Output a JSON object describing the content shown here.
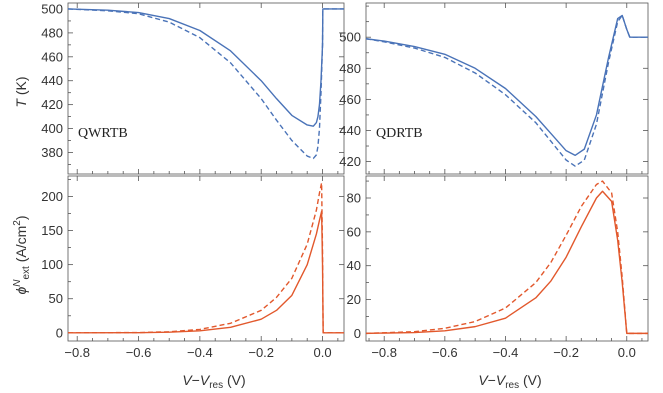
{
  "chart_data": [
    {
      "id": "qwrtb-T",
      "type": "line",
      "annotation": "QWRTB",
      "ylabel": "T (K)",
      "xlabel": "",
      "xlim": [
        -0.83,
        0.07
      ],
      "ylim": [
        362,
        505
      ],
      "xticks": [
        -0.8,
        -0.6,
        -0.4,
        -0.2,
        0.0
      ],
      "xtick_labels": [],
      "yticks": [
        380,
        400,
        420,
        440,
        460,
        480,
        500
      ],
      "ytick_labels": [
        "380",
        "400",
        "420",
        "440",
        "460",
        "480",
        "500"
      ],
      "grid": false,
      "series": [
        {
          "style": "solid",
          "color": "#4a73b8",
          "x": [
            -0.83,
            -0.7,
            -0.6,
            -0.5,
            -0.4,
            -0.3,
            -0.2,
            -0.15,
            -0.1,
            -0.05,
            -0.03,
            -0.02,
            -0.015,
            -0.01,
            -0.005,
            0.0,
            0.001,
            0.07
          ],
          "y": [
            500,
            499,
            497,
            492,
            482,
            465,
            440,
            425,
            411,
            403,
            402,
            405,
            410,
            420,
            440,
            470,
            500,
            500
          ]
        },
        {
          "style": "dashed",
          "color": "#4a73b8",
          "x": [
            -0.83,
            -0.7,
            -0.6,
            -0.5,
            -0.4,
            -0.3,
            -0.2,
            -0.15,
            -0.1,
            -0.05,
            -0.03,
            -0.02,
            -0.015,
            -0.01,
            -0.005,
            0.0,
            0.001,
            0.07
          ],
          "y": [
            500,
            498.5,
            496,
            489,
            476,
            455,
            425,
            407,
            390,
            377,
            375,
            378,
            385,
            400,
            430,
            470,
            500,
            500
          ]
        }
      ]
    },
    {
      "id": "qdrtb-T",
      "type": "line",
      "annotation": "QDRTB",
      "ylabel": "",
      "xlabel": "",
      "xlim": [
        -0.86,
        0.07
      ],
      "ylim": [
        412,
        522
      ],
      "xticks": [
        -0.8,
        -0.6,
        -0.4,
        -0.2,
        0.0
      ],
      "xtick_labels": [],
      "yticks": [
        420,
        440,
        460,
        480,
        500
      ],
      "ytick_labels": [
        "420",
        "440",
        "460",
        "480",
        "500"
      ],
      "grid": false,
      "series": [
        {
          "style": "solid",
          "color": "#4a73b8",
          "x": [
            -0.86,
            -0.8,
            -0.7,
            -0.6,
            -0.5,
            -0.4,
            -0.3,
            -0.25,
            -0.2,
            -0.17,
            -0.14,
            -0.1,
            -0.06,
            -0.03,
            -0.015,
            0.0,
            0.01,
            0.07
          ],
          "y": [
            499,
            497.5,
            494,
            489,
            480,
            467,
            449,
            438,
            427,
            424,
            428,
            450,
            487,
            512,
            514,
            505,
            500,
            500
          ]
        },
        {
          "style": "dashed",
          "color": "#4a73b8",
          "x": [
            -0.86,
            -0.8,
            -0.7,
            -0.6,
            -0.5,
            -0.4,
            -0.3,
            -0.25,
            -0.2,
            -0.17,
            -0.14,
            -0.1,
            -0.06,
            -0.03,
            -0.015,
            0.0,
            0.01,
            0.07
          ],
          "y": [
            499,
            497,
            493,
            487,
            477,
            463,
            445,
            433,
            421,
            417,
            421,
            444,
            484,
            510,
            514,
            505,
            500,
            500
          ]
        }
      ]
    },
    {
      "id": "qwrtb-phi",
      "type": "line",
      "annotation": "",
      "ylabel": "ϕ^N_ext (A/cm^2)",
      "ylabel_parts": {
        "symbol": "ϕ",
        "sup": "N",
        "sub": "ext",
        "unit_open": " (A/cm",
        "unit_sup": "2",
        "unit_close": ")"
      },
      "xlabel": "V−V_res (V)",
      "xlabel_parts": {
        "a": "V",
        "minus": "−",
        "b": "V",
        "sub": "res",
        "unit": " (V)"
      },
      "xlim": [
        -0.83,
        0.07
      ],
      "ylim": [
        -12,
        230
      ],
      "xticks": [
        -0.8,
        -0.6,
        -0.4,
        -0.2,
        0.0
      ],
      "xtick_labels": [
        "−0.8",
        "−0.6",
        "−0.4",
        "−0.2",
        "0.0"
      ],
      "yticks": [
        0,
        50,
        100,
        150,
        200
      ],
      "ytick_labels": [
        "0",
        "50",
        "100",
        "150",
        "200"
      ],
      "grid": false,
      "series": [
        {
          "style": "solid",
          "color": "#e2582c",
          "x": [
            -0.83,
            -0.6,
            -0.5,
            -0.4,
            -0.3,
            -0.2,
            -0.15,
            -0.1,
            -0.05,
            -0.02,
            -0.01,
            -0.003,
            0.0,
            0.002,
            0.07
          ],
          "y": [
            0,
            0.2,
            1,
            3,
            8,
            20,
            33,
            55,
            100,
            145,
            165,
            178,
            100,
            0,
            0
          ]
        },
        {
          "style": "dashed",
          "color": "#e2582c",
          "x": [
            -0.83,
            -0.6,
            -0.5,
            -0.4,
            -0.3,
            -0.2,
            -0.15,
            -0.1,
            -0.05,
            -0.02,
            -0.01,
            -0.003,
            0.0,
            0.002,
            0.07
          ],
          "y": [
            0,
            0.4,
            1.5,
            5,
            14,
            33,
            52,
            80,
            130,
            180,
            205,
            220,
            120,
            0,
            0
          ]
        }
      ]
    },
    {
      "id": "qdrtb-phi",
      "type": "line",
      "annotation": "",
      "ylabel": "",
      "xlabel": "V−V_res (V)",
      "xlabel_parts": {
        "a": "V",
        "minus": "−",
        "b": "V",
        "sub": "res",
        "unit": " (V)"
      },
      "xlim": [
        -0.86,
        0.07
      ],
      "ylim": [
        -4.5,
        93
      ],
      "xticks": [
        -0.8,
        -0.6,
        -0.4,
        -0.2,
        0.0
      ],
      "xtick_labels": [
        "−0.8",
        "−0.6",
        "−0.4",
        "−0.2",
        "0.0"
      ],
      "yticks": [
        0,
        20,
        40,
        60,
        80
      ],
      "ytick_labels": [
        "0",
        "20",
        "40",
        "60",
        "80"
      ],
      "grid": false,
      "series": [
        {
          "style": "solid",
          "color": "#e2582c",
          "x": [
            -0.86,
            -0.7,
            -0.6,
            -0.5,
            -0.4,
            -0.3,
            -0.25,
            -0.2,
            -0.15,
            -0.1,
            -0.08,
            -0.05,
            -0.03,
            -0.015,
            -0.005,
            0.0,
            0.07
          ],
          "y": [
            0,
            0.5,
            1.5,
            4,
            9,
            21,
            31,
            45,
            63,
            80,
            84,
            78,
            55,
            30,
            10,
            0,
            0
          ]
        },
        {
          "style": "dashed",
          "color": "#e2582c",
          "x": [
            -0.86,
            -0.7,
            -0.6,
            -0.5,
            -0.4,
            -0.3,
            -0.25,
            -0.2,
            -0.15,
            -0.1,
            -0.08,
            -0.05,
            -0.03,
            -0.015,
            -0.005,
            0.0,
            0.07
          ],
          "y": [
            0,
            1,
            3,
            7,
            15,
            30,
            42,
            58,
            75,
            88,
            90,
            83,
            60,
            33,
            11,
            0,
            0
          ]
        }
      ]
    }
  ]
}
